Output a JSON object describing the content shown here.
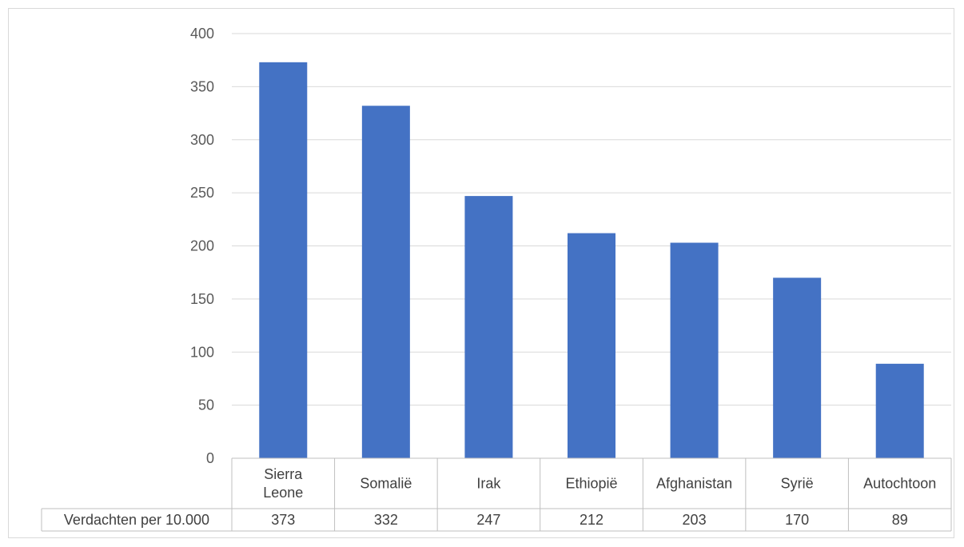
{
  "chart_data": {
    "type": "bar",
    "categories": [
      [
        "Sierra",
        "Leone"
      ],
      [
        "Somalië"
      ],
      [
        "Irak"
      ],
      [
        "Ethiopië"
      ],
      [
        "Afghanistan"
      ],
      [
        "Syrië"
      ],
      [
        "Autochtoon"
      ]
    ],
    "series": [
      {
        "name": "Verdachten per 10.000",
        "values": [
          373,
          332,
          247,
          212,
          203,
          170,
          89
        ],
        "color": "#4472c4"
      }
    ],
    "yticks": [
      "0",
      "50",
      "100",
      "150",
      "200",
      "250",
      "300",
      "350",
      "400"
    ],
    "ylim": [
      0,
      400
    ],
    "grid": true,
    "data_table": true
  }
}
